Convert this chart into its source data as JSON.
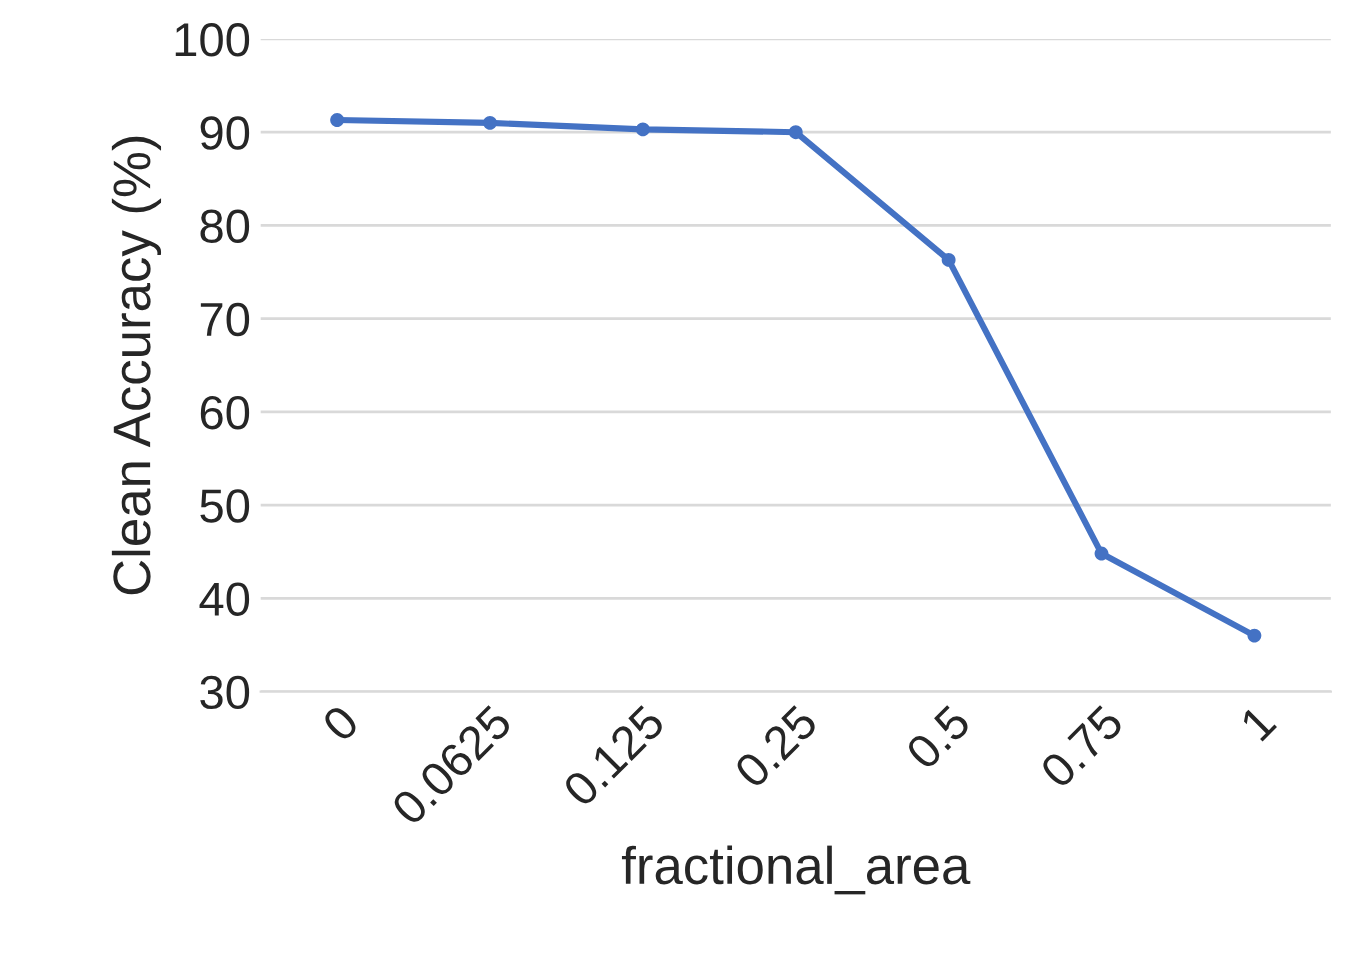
{
  "chart_data": {
    "type": "line",
    "xlabel": "fractional_area",
    "ylabel": "Clean Accuracy (%)",
    "categories": [
      "0",
      "0.0625",
      "0.125",
      "0.25",
      "0.5",
      "0.75",
      "1"
    ],
    "series": [
      {
        "color": "#4472c4",
        "values": [
          91.3,
          91.0,
          90.3,
          90.0,
          76.3,
          44.8,
          36.0
        ]
      }
    ],
    "ylim": [
      30,
      100
    ],
    "yticks": [
      30,
      40,
      50,
      60,
      70,
      80,
      90,
      100
    ],
    "grid": "y",
    "marker": "circle",
    "line_style": "solid",
    "legend": false
  }
}
